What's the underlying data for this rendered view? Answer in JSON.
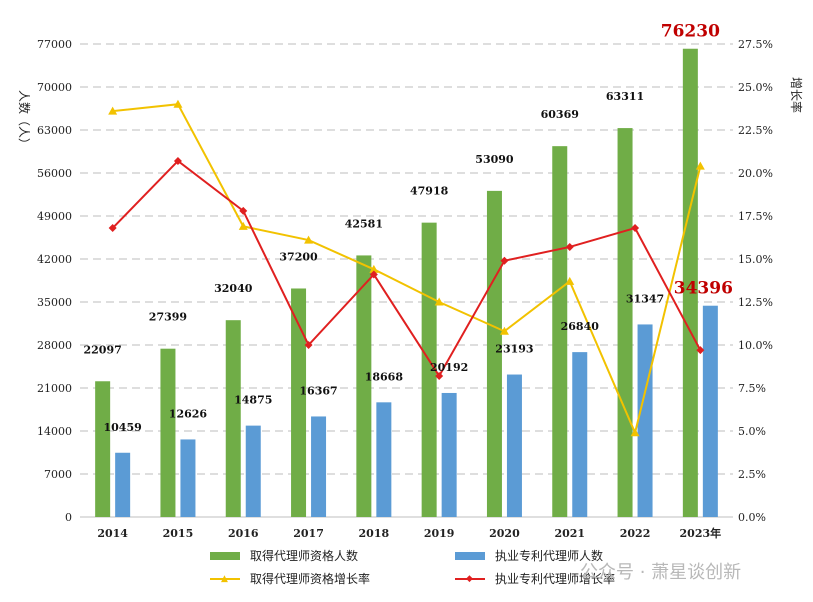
{
  "chart_data": {
    "type": "bar",
    "categories": [
      "2014",
      "2015",
      "2016",
      "2017",
      "2018",
      "2019",
      "2020",
      "2021",
      "2022",
      "2023年"
    ],
    "y_left": {
      "label": "人数（人）",
      "ylim": [
        0,
        77000
      ],
      "ticks": [
        "0",
        "7000",
        "14000",
        "21000",
        "28000",
        "35000",
        "42000",
        "49000",
        "56000",
        "63000",
        "70000",
        "77000"
      ]
    },
    "y_right": {
      "label": "增长率",
      "ylim": [
        0,
        27.5
      ],
      "ticks": [
        "0.0%",
        "2.5%",
        "5.0%",
        "7.5%",
        "10.0%",
        "12.5%",
        "15.0%",
        "17.5%",
        "20.0%",
        "22.5%",
        "25.0%",
        "27.5%"
      ]
    },
    "grid": "horizontal dashed",
    "legend_position": "bottom",
    "series": [
      {
        "name": "取得代理师资格人数",
        "type": "bar",
        "axis": "left",
        "color": "#70ad47",
        "values": [
          22097,
          27399,
          32040,
          37200,
          42581,
          47918,
          53090,
          60369,
          63311,
          76230
        ],
        "labels": [
          "22097",
          "27399",
          "32040",
          "37200",
          "42581",
          "47918",
          "53090",
          "60369",
          "63311",
          "76230"
        ]
      },
      {
        "name": "执业专利代理师人数",
        "type": "bar",
        "axis": "left",
        "color": "#5b9bd5",
        "values": [
          10459,
          12626,
          14875,
          16367,
          18668,
          20192,
          23193,
          26840,
          31347,
          34396
        ],
        "labels": [
          "10459",
          "12626",
          "14875",
          "16367",
          "18668",
          "20192",
          "23193",
          "26840",
          "31347",
          "34396"
        ]
      },
      {
        "name": "取得代理师资格增长率",
        "type": "line",
        "axis": "right",
        "color": "#f2c200",
        "marker": "triangle",
        "values": [
          23.6,
          24.0,
          16.9,
          16.1,
          14.4,
          12.5,
          10.8,
          13.7,
          4.9,
          20.4
        ]
      },
      {
        "name": "执业专利代理师增长率",
        "type": "line",
        "axis": "right",
        "color": "#e02020",
        "marker": "diamond",
        "values": [
          16.8,
          20.7,
          17.8,
          10.0,
          14.1,
          8.2,
          14.9,
          15.7,
          16.8,
          9.7
        ]
      }
    ]
  },
  "watermark": "公众号 · 萧星谈创新"
}
